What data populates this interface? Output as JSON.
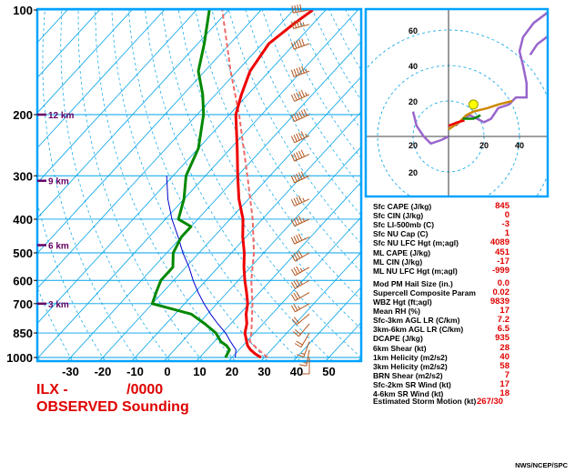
{
  "chart_data": {
    "type": "skew-t sounding",
    "title": "ILX -",
    "time": "/0000",
    "subtitle": "OBSERVED Sounding",
    "credit": "NWS/NCEP/SPC",
    "pressure_ticks": [
      "100",
      "200",
      "300",
      "400",
      "500",
      "600",
      "700",
      "850",
      "1000"
    ],
    "pressure_values": [
      100,
      200,
      300,
      400,
      500,
      600,
      700,
      850,
      1000
    ],
    "height_markers": [
      {
        "label": "12 km",
        "p": 200
      },
      {
        "label": "9 km",
        "p": 310
      },
      {
        "label": "6 km",
        "p": 475
      },
      {
        "label": "3 km",
        "p": 700
      }
    ],
    "temp_ticks": [
      "-30",
      "-20",
      "-10",
      "0",
      "10",
      "20",
      "30",
      "40",
      "50"
    ],
    "temp_values": [
      -30,
      -20,
      -10,
      0,
      10,
      20,
      30,
      40,
      50
    ],
    "temperature": [
      {
        "p": 1000,
        "t": 29
      },
      {
        "p": 975,
        "t": 26
      },
      {
        "p": 950,
        "t": 23.5
      },
      {
        "p": 925,
        "t": 21.5
      },
      {
        "p": 900,
        "t": 20
      },
      {
        "p": 850,
        "t": 17
      },
      {
        "p": 800,
        "t": 15
      },
      {
        "p": 750,
        "t": 12
      },
      {
        "p": 700,
        "t": 9.5
      },
      {
        "p": 650,
        "t": 6
      },
      {
        "p": 600,
        "t": 2
      },
      {
        "p": 550,
        "t": -2
      },
      {
        "p": 500,
        "t": -6
      },
      {
        "p": 450,
        "t": -11
      },
      {
        "p": 400,
        "t": -16
      },
      {
        "p": 350,
        "t": -23
      },
      {
        "p": 300,
        "t": -30
      },
      {
        "p": 250,
        "t": -38
      },
      {
        "p": 200,
        "t": -48
      },
      {
        "p": 175,
        "t": -52
      },
      {
        "p": 150,
        "t": -56
      },
      {
        "p": 125,
        "t": -58
      },
      {
        "p": 110,
        "t": -56
      },
      {
        "p": 100,
        "t": -54
      }
    ],
    "dewpoint": [
      {
        "p": 1000,
        "t": 18
      },
      {
        "p": 975,
        "t": 17.5
      },
      {
        "p": 950,
        "t": 17
      },
      {
        "p": 925,
        "t": 15
      },
      {
        "p": 900,
        "t": 12
      },
      {
        "p": 850,
        "t": 8
      },
      {
        "p": 800,
        "t": 2
      },
      {
        "p": 750,
        "t": -5
      },
      {
        "p": 700,
        "t": -20
      },
      {
        "p": 650,
        "t": -22
      },
      {
        "p": 600,
        "t": -24
      },
      {
        "p": 550,
        "t": -24
      },
      {
        "p": 500,
        "t": -28
      },
      {
        "p": 450,
        "t": -30
      },
      {
        "p": 420,
        "t": -30
      },
      {
        "p": 400,
        "t": -36
      },
      {
        "p": 350,
        "t": -40
      },
      {
        "p": 300,
        "t": -46
      },
      {
        "p": 250,
        "t": -50
      },
      {
        "p": 200,
        "t": -58
      },
      {
        "p": 175,
        "t": -64
      },
      {
        "p": 150,
        "t": -72
      },
      {
        "p": 125,
        "t": -78
      },
      {
        "p": 100,
        "t": -86
      }
    ],
    "virtual_parcel": [
      {
        "p": 1000,
        "t": 31
      },
      {
        "p": 950,
        "t": 26
      },
      {
        "p": 900,
        "t": 21
      },
      {
        "p": 850,
        "t": 19
      },
      {
        "p": 700,
        "t": 11
      },
      {
        "p": 600,
        "t": 4
      },
      {
        "p": 500,
        "t": -3
      },
      {
        "p": 400,
        "t": -13
      },
      {
        "p": 300,
        "t": -27
      },
      {
        "p": 250,
        "t": -36
      },
      {
        "p": 200,
        "t": -47
      },
      {
        "p": 150,
        "t": -62
      },
      {
        "p": 100,
        "t": -82
      }
    ],
    "wetbulb": [
      {
        "p": 1000,
        "t": 21
      },
      {
        "p": 950,
        "t": 19
      },
      {
        "p": 900,
        "t": 15
      },
      {
        "p": 850,
        "t": 11
      },
      {
        "p": 800,
        "t": 6
      },
      {
        "p": 750,
        "t": 1
      },
      {
        "p": 700,
        "t": -4
      },
      {
        "p": 650,
        "t": -9
      },
      {
        "p": 600,
        "t": -14
      },
      {
        "p": 550,
        "t": -19
      },
      {
        "p": 500,
        "t": -25
      },
      {
        "p": 450,
        "t": -31
      },
      {
        "p": 400,
        "t": -38
      },
      {
        "p": 350,
        "t": -45
      },
      {
        "p": 300,
        "t": -52
      }
    ],
    "colors": {
      "temperature": "#ee0000",
      "dewpoint": "#008800",
      "parcel": "#ee6a6a",
      "wetbulb": "#0000cc",
      "isotherms": "#00a2e8",
      "frame": "#00a2ff",
      "barbs": "#b3561d",
      "hodograph": "#9966cc",
      "hodo_low": "#cc8800",
      "storm": "#ffff00"
    },
    "hodograph": {
      "rings": [
        "20",
        "40",
        "60"
      ],
      "ring_values": [
        20,
        40,
        60
      ],
      "axis_labels_y": [
        "60",
        "40",
        "20",
        "20"
      ],
      "axis_values_y": [
        60,
        40,
        20,
        -20
      ],
      "axis_labels_x": [
        "20",
        "20",
        "40",
        "60"
      ],
      "axis_values_x": [
        -20,
        20,
        40,
        60
      ],
      "trace": [
        {
          "u": 4,
          "v": 6
        },
        {
          "u": 8,
          "v": 10
        },
        {
          "u": 12,
          "v": 12
        },
        {
          "u": 16,
          "v": 10
        },
        {
          "u": 20,
          "v": 8
        },
        {
          "u": 24,
          "v": 10
        },
        {
          "u": 28,
          "v": 16
        },
        {
          "u": 34,
          "v": 18
        },
        {
          "u": 38,
          "v": 22
        },
        {
          "u": 44,
          "v": 22
        },
        {
          "u": 44,
          "v": 30
        },
        {
          "u": 42,
          "v": 40
        },
        {
          "u": 40,
          "v": 48
        },
        {
          "u": 42,
          "v": 56
        },
        {
          "u": 48,
          "v": 64
        },
        {
          "u": 56,
          "v": 70
        },
        {
          "u": 68,
          "v": 66
        },
        {
          "u": 58,
          "v": 58
        },
        {
          "u": 50,
          "v": 52
        },
        {
          "u": 46,
          "v": 46
        }
      ],
      "trace_low": [
        {
          "u": 0,
          "v": 4
        },
        {
          "u": 6,
          "v": 8
        },
        {
          "u": 10,
          "v": 12
        },
        {
          "u": 14,
          "v": 14
        },
        {
          "u": 22,
          "v": 16
        },
        {
          "u": 28,
          "v": 18
        },
        {
          "u": 36,
          "v": 20
        }
      ],
      "upper_tail": [
        {
          "u": 0,
          "v": 0
        },
        {
          "u": -4,
          "v": -2
        },
        {
          "u": -10,
          "v": -4
        },
        {
          "u": -14,
          "v": 0
        },
        {
          "u": -18,
          "v": 6
        },
        {
          "u": -20,
          "v": 14
        }
      ],
      "storm_motion": {
        "u": 14,
        "v": 18
      }
    },
    "wind_barbs": [
      {
        "p": 100,
        "dir": 260,
        "spd": 40
      },
      {
        "p": 110,
        "dir": 255,
        "spd": 45
      },
      {
        "p": 125,
        "dir": 250,
        "spd": 50
      },
      {
        "p": 150,
        "dir": 250,
        "spd": 55
      },
      {
        "p": 175,
        "dir": 245,
        "spd": 55
      },
      {
        "p": 200,
        "dir": 245,
        "spd": 60
      },
      {
        "p": 230,
        "dir": 245,
        "spd": 55
      },
      {
        "p": 260,
        "dir": 245,
        "spd": 50
      },
      {
        "p": 300,
        "dir": 245,
        "spd": 50
      },
      {
        "p": 350,
        "dir": 245,
        "spd": 45
      },
      {
        "p": 400,
        "dir": 245,
        "spd": 45
      },
      {
        "p": 450,
        "dir": 245,
        "spd": 40
      },
      {
        "p": 500,
        "dir": 240,
        "spd": 40
      },
      {
        "p": 550,
        "dir": 240,
        "spd": 35
      },
      {
        "p": 600,
        "dir": 240,
        "spd": 35
      },
      {
        "p": 650,
        "dir": 240,
        "spd": 30
      },
      {
        "p": 700,
        "dir": 240,
        "spd": 25
      },
      {
        "p": 750,
        "dir": 230,
        "spd": 20
      },
      {
        "p": 800,
        "dir": 220,
        "spd": 20
      },
      {
        "p": 850,
        "dir": 210,
        "spd": 20
      },
      {
        "p": 900,
        "dir": 200,
        "spd": 15
      },
      {
        "p": 950,
        "dir": 190,
        "spd": 15
      },
      {
        "p": 1000,
        "dir": 180,
        "spd": 10
      }
    ]
  },
  "indices": [
    {
      "label": "Sfc CAPE (J/kg)",
      "value": "845"
    },
    {
      "label": "Sfc CIN (J/kg)",
      "value": "0"
    },
    {
      "label": "Sfc LI-500mb (C)",
      "value": "-3"
    },
    {
      "label": "Sfc NU Cap (C)",
      "value": "1"
    },
    {
      "label": "Sfc NU LFC Hgt (m;agl)",
      "value": "4089"
    },
    {
      "label": "ML CAPE (J/kg)",
      "value": "451"
    },
    {
      "label": "ML CIN (J/kg)",
      "value": "-17"
    },
    {
      "label": "ML NU LFC Hgt (m;agl)",
      "value": "-999"
    },
    {
      "label": "Mod PM Hail Size (in.)",
      "value": "0.0"
    },
    {
      "label": "Supercell Composite Param",
      "value": "0.02"
    },
    {
      "label": "WBZ Hgt (ft;agl)",
      "value": "9839"
    },
    {
      "label": "Mean RH (%)",
      "value": "17"
    },
    {
      "label": "Sfc-3km AGL LR (C/km)",
      "value": "7.2"
    },
    {
      "label": "3km-6km AGL LR (C/km)",
      "value": "6.5"
    },
    {
      "label": "DCAPE (J/kg)",
      "value": "935"
    },
    {
      "label": "6km Shear (kt)",
      "value": "28"
    },
    {
      "label": "1km Helicity (m2/s2)",
      "value": "40"
    },
    {
      "label": "3km Helicity (m2/s2)",
      "value": "58"
    },
    {
      "label": "BRN Shear (m2/s2)",
      "value": "7"
    },
    {
      "label": "Sfc-2km SR Wind (kt)",
      "value": "17"
    },
    {
      "label": "4-6km SR Wind (kt)",
      "value": "18"
    }
  ],
  "storm_motion": {
    "label": "Estimated Storm Motion (kt)",
    "value": "267/30"
  }
}
